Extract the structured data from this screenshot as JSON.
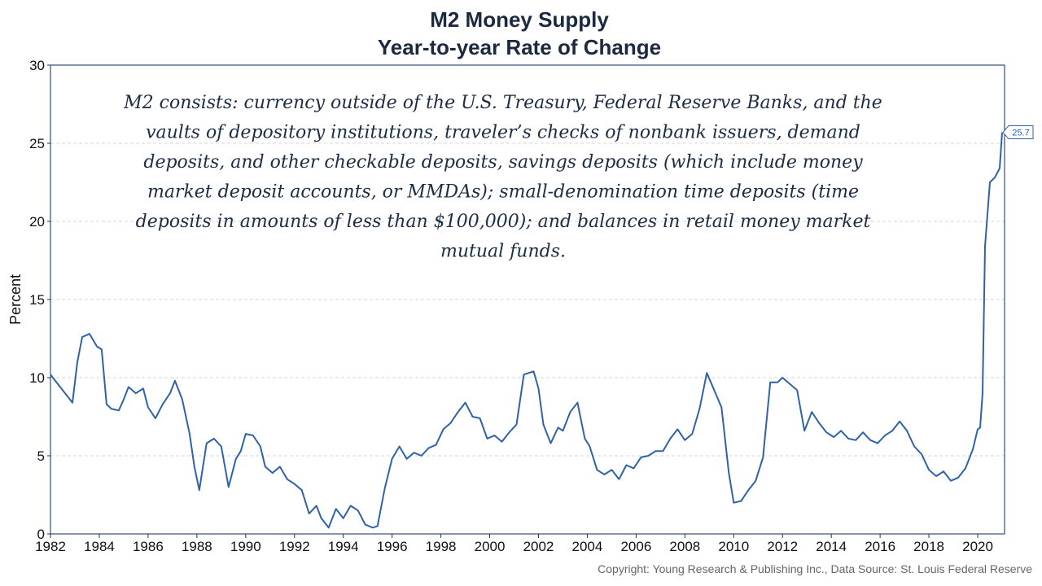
{
  "chart_data": {
    "type": "line",
    "title_lines": [
      "M2 Money Supply",
      "Year-to-year Rate of Change"
    ],
    "xlabel": "",
    "ylabel": "Percent",
    "xlim": [
      1982,
      2021.1
    ],
    "ylim": [
      0,
      30
    ],
    "xticks": [
      1982,
      1984,
      1986,
      1988,
      1990,
      1992,
      1994,
      1996,
      1998,
      2000,
      2002,
      2004,
      2006,
      2008,
      2010,
      2012,
      2014,
      2016,
      2018,
      2020
    ],
    "yticks": [
      0,
      5,
      10,
      15,
      20,
      25,
      30
    ],
    "grid": "horizontal-dashed",
    "line_color": "#2f62a8",
    "last_value_label": "25.7",
    "annotation_lines": [
      "M2 consists: currency outside of the U.S. Treasury, Federal Reserve Banks, and the",
      "vaults of depository institutions, traveler’s checks of nonbank issuers, demand",
      "deposits, and other checkable deposits, savings deposits (which include money",
      "market deposit accounts, or MMDAs); small-denomination time deposits (time",
      "deposits in amounts of less than $100,000); and balances in retail money market",
      "mutual funds."
    ],
    "series": [
      {
        "x": [
          1982.0,
          1982.3,
          1982.6,
          1982.9,
          1983.1,
          1983.3,
          1983.6,
          1983.9,
          1984.1,
          1984.3,
          1984.5,
          1984.8,
          1985.0,
          1985.2,
          1985.5,
          1985.8,
          1986.0,
          1986.3,
          1986.6,
          1986.9,
          1987.1,
          1987.4,
          1987.7,
          1987.9,
          1988.1,
          1988.4,
          1988.7,
          1989.0,
          1989.3,
          1989.6,
          1989.8,
          1990.0,
          1990.3,
          1990.6,
          1990.8,
          1991.1,
          1991.4,
          1991.7,
          1992.0,
          1992.3,
          1992.6,
          1992.9,
          1993.1,
          1993.4,
          1993.7,
          1994.0,
          1994.3,
          1994.6,
          1994.9,
          1995.2,
          1995.4,
          1995.7,
          1996.0,
          1996.3,
          1996.6,
          1996.9,
          1997.2,
          1997.5,
          1997.8,
          1998.1,
          1998.4,
          1998.7,
          1999.0,
          1999.3,
          1999.6,
          1999.9,
          2000.2,
          2000.5,
          2000.8,
          2001.1,
          2001.4,
          2001.8,
          2002.0,
          2002.2,
          2002.5,
          2002.8,
          2003.0,
          2003.3,
          2003.6,
          2003.9,
          2004.1,
          2004.4,
          2004.7,
          2005.0,
          2005.3,
          2005.6,
          2005.9,
          2006.2,
          2006.5,
          2006.8,
          2007.1,
          2007.4,
          2007.7,
          2008.0,
          2008.3,
          2008.6,
          2008.9,
          2009.2,
          2009.5,
          2009.8,
          2010.0,
          2010.3,
          2010.6,
          2010.9,
          2011.2,
          2011.5,
          2011.8,
          2012.0,
          2012.3,
          2012.6,
          2012.9,
          2013.2,
          2013.5,
          2013.8,
          2014.1,
          2014.4,
          2014.7,
          2015.0,
          2015.3,
          2015.6,
          2015.9,
          2016.2,
          2016.5,
          2016.8,
          2017.1,
          2017.4,
          2017.7,
          2018.0,
          2018.3,
          2018.6,
          2018.9,
          2019.2,
          2019.5,
          2019.8,
          2020.0,
          2020.1,
          2020.2,
          2020.3,
          2020.5,
          2020.7,
          2020.9,
          2021.0
        ],
        "values": [
          10.2,
          9.6,
          9.0,
          8.4,
          11.0,
          12.6,
          12.8,
          12.0,
          11.8,
          8.3,
          8.0,
          7.9,
          8.6,
          9.4,
          9.0,
          9.3,
          8.1,
          7.4,
          8.3,
          9.0,
          9.8,
          8.6,
          6.4,
          4.3,
          2.8,
          5.8,
          6.1,
          5.6,
          3.0,
          4.8,
          5.3,
          6.4,
          6.3,
          5.6,
          4.3,
          3.9,
          4.3,
          3.5,
          3.2,
          2.8,
          1.3,
          1.8,
          1.0,
          0.4,
          1.6,
          1.0,
          1.8,
          1.5,
          0.6,
          0.4,
          0.5,
          2.9,
          4.8,
          5.6,
          4.8,
          5.2,
          5.0,
          5.5,
          5.7,
          6.7,
          7.1,
          7.8,
          8.4,
          7.5,
          7.4,
          6.1,
          6.3,
          5.9,
          6.5,
          7.0,
          10.2,
          10.4,
          9.3,
          7.0,
          5.8,
          6.8,
          6.6,
          7.8,
          8.4,
          6.1,
          5.6,
          4.1,
          3.8,
          4.1,
          3.5,
          4.4,
          4.2,
          4.9,
          5.0,
          5.3,
          5.3,
          6.1,
          6.7,
          6.0,
          6.4,
          8.0,
          10.3,
          9.2,
          8.1,
          3.9,
          2.0,
          2.1,
          2.8,
          3.4,
          4.9,
          9.7,
          9.7,
          10.0,
          9.6,
          9.2,
          6.6,
          7.8,
          7.1,
          6.5,
          6.2,
          6.6,
          6.1,
          6.0,
          6.5,
          6.0,
          5.8,
          6.3,
          6.6,
          7.2,
          6.6,
          5.6,
          5.1,
          4.1,
          3.7,
          4.0,
          3.4,
          3.6,
          4.2,
          5.4,
          6.7,
          6.8,
          9.0,
          18.4,
          22.5,
          22.8,
          23.4,
          25.7
        ]
      }
    ]
  },
  "source": "Copyright: Young Research & Publishing Inc., Data Source: St. Louis Federal Reserve"
}
